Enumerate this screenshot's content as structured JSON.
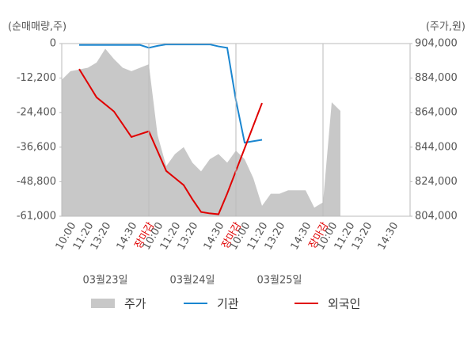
{
  "chart_data": {
    "type": "dual-axis-line",
    "y_label": "(순매매량,주)",
    "y2_label": "(주가,원)",
    "categories": [
      null,
      "10:00",
      null,
      "11:20",
      null,
      "13:20",
      null,
      null,
      "14:30",
      null,
      "장마감",
      "10:00",
      null,
      "11:20",
      null,
      "13:20",
      null,
      null,
      "14:30",
      null,
      "장마감",
      "10:00",
      null,
      "11:20",
      null,
      "13:20",
      null,
      null,
      "14:30",
      null,
      "장마감",
      "10:00",
      null,
      "11:20",
      null,
      "13:20",
      null,
      null,
      "14:30",
      null,
      null
    ],
    "dates": [
      "03월23일",
      "03월24일",
      "03월25일"
    ],
    "close_color": "#e00000",
    "ylim": [
      -61000,
      0
    ],
    "yticks": [
      0,
      {
        "value": -12200,
        "label": "-12,200"
      },
      {
        "value": -24400,
        "label": "-24,400"
      },
      {
        "value": -36600,
        "label": "-36,600"
      },
      {
        "value": -48800,
        "label": "-48,800"
      },
      {
        "value": -61000,
        "label": "-61,000"
      }
    ],
    "y2lim": [
      804000,
      904000
    ],
    "y2ticks": [
      {
        "value": 804000,
        "label": "804,000"
      },
      {
        "value": 824000,
        "label": "824,000"
      },
      {
        "value": 844000,
        "label": "844,000"
      },
      {
        "value": 864000,
        "label": "864,000"
      },
      {
        "value": 884000,
        "label": "884,000"
      },
      {
        "value": 904000,
        "label": "904,000"
      }
    ],
    "series": [
      {
        "name": "주가",
        "type": "area",
        "axis": "y2",
        "color": "#c8c8c8",
        "values": [
          883000,
          888000,
          889000,
          890000,
          893000,
          901000,
          895000,
          890000,
          888000,
          890000,
          892000,
          851000,
          833000,
          840000,
          844000,
          835000,
          830000,
          837000,
          840000,
          835000,
          842000,
          837000,
          826000,
          810000,
          817000,
          817000,
          819000,
          819000,
          819000,
          809000,
          812000,
          870000,
          865000,
          null,
          null,
          null,
          null,
          null,
          null,
          null,
          null
        ]
      },
      {
        "name": "기관",
        "type": "line",
        "color": "#1a86d0",
        "values": [
          null,
          null,
          -500,
          -500,
          -500,
          -500,
          -500,
          -500,
          -500,
          -500,
          -1500,
          -800,
          -300,
          -300,
          -300,
          -300,
          -300,
          -300,
          -1000,
          -1500,
          -20000,
          -35000,
          -34500,
          -34000,
          null,
          null,
          null,
          null,
          null,
          null,
          null,
          null,
          null,
          null,
          null,
          null,
          null,
          null,
          null,
          null,
          null
        ]
      },
      {
        "name": "외국인",
        "type": "line",
        "color": "#e00000",
        "values": [
          null,
          null,
          -9000,
          -14000,
          -19000,
          -21500,
          -24000,
          -28500,
          -33000,
          -32000,
          -31000,
          -38000,
          -45000,
          -47500,
          -50000,
          -55000,
          -59500,
          -60000,
          -60300,
          -53000,
          -45000,
          -37000,
          -29000,
          -21000,
          null,
          null,
          null,
          null,
          null,
          null,
          null,
          null,
          null,
          null,
          null,
          null,
          null,
          null,
          null,
          null,
          null
        ]
      }
    ]
  }
}
